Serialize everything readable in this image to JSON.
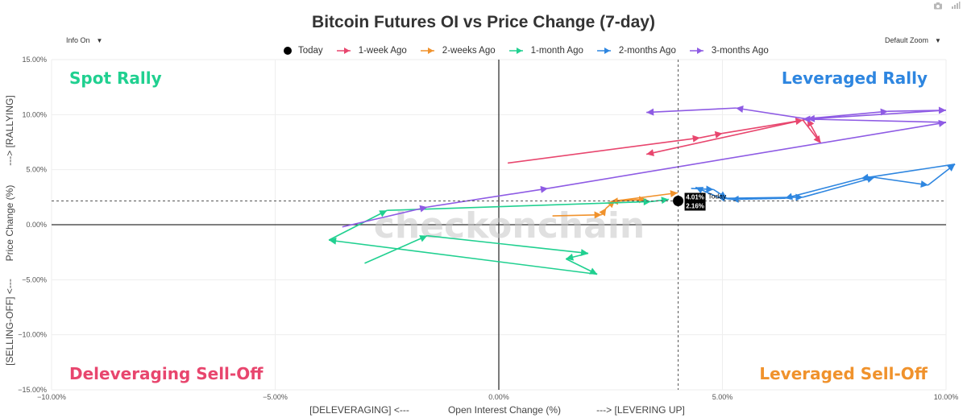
{
  "title": "Bitcoin Futures OI vs Price Change (7-day)",
  "controls": {
    "info": "Info On",
    "zoom": "Default Zoom"
  },
  "watermark": "checkonchain",
  "quadrants": {
    "top_left": "Spot Rally",
    "top_right": "Leveraged Rally",
    "bottom_left": "Deleveraging Sell-Off",
    "bottom_right": "Leveraged Sell-Off"
  },
  "colors": {
    "today": "#000000",
    "week1": "#e8466e",
    "week2": "#f0922c",
    "month1": "#20d090",
    "month2": "#2e86e0",
    "month3": "#8e5be4",
    "spot_rally": "#20d090",
    "leveraged_rally": "#2e86e0",
    "deleveraging": "#e8466e",
    "leveraged_selloff": "#f0922c"
  },
  "chart_data": {
    "type": "scatter",
    "title": "Bitcoin Futures OI vs Price Change (7-day)",
    "xlabel": "Open Interest Change (%)",
    "xlabel_left": "[DELEVERAGING]  <---",
    "xlabel_right": "--->  [LEVERING UP]",
    "ylabel": "Price Change (%)",
    "ylabel_bottom": "[SELLING-OFF]  <---",
    "ylabel_top": "--->  [RALLYING]",
    "xlim": [
      -10,
      10
    ],
    "ylim": [
      -15,
      15
    ],
    "x_ticks": [
      -10,
      -5,
      0,
      5,
      10
    ],
    "y_ticks": [
      -15,
      -10,
      -5,
      0,
      5,
      10,
      15
    ],
    "x_tick_labels": [
      "−10.00%",
      "−5.00%",
      "0.00%",
      "5.00%",
      "10.00%"
    ],
    "y_tick_labels": [
      "−15.00%",
      "−10.00%",
      "−5.00%",
      "0.00%",
      "5.00%",
      "10.00%",
      "15.00%"
    ],
    "legend_position": "top-center",
    "today": {
      "name": "Today",
      "x": 4.01,
      "y": 2.16,
      "x_label": "4.01%",
      "y_label": "2.16%",
      "annotation": "Today"
    },
    "series": [
      {
        "name": "1-week Ago",
        "color": "#e8466e",
        "x": [
          0.2,
          4.5,
          5.0,
          6.8,
          7.2,
          6.9,
          3.3
        ],
        "y": [
          5.6,
          7.9,
          8.3,
          9.5,
          7.4,
          9.6,
          6.4
        ]
      },
      {
        "name": "2-weeks Ago",
        "color": "#f0922c",
        "x": [
          1.2,
          2.3,
          2.4,
          2.6,
          3.3,
          2.5,
          4.0
        ],
        "y": [
          0.8,
          0.9,
          1.5,
          2.2,
          2.3,
          2.1,
          2.9
        ]
      },
      {
        "name": "1-month Ago",
        "color": "#20d090",
        "x": [
          -3.0,
          -1.6,
          2.0,
          1.5,
          2.2,
          -3.8,
          -2.5,
          3.4,
          3.8
        ],
        "y": [
          -3.5,
          -1.0,
          -2.6,
          -3.1,
          -4.5,
          -1.4,
          1.3,
          2.1,
          2.3
        ]
      },
      {
        "name": "2-months Ago",
        "color": "#2e86e0",
        "x": [
          4.3,
          4.8,
          5.1,
          6.8,
          8.4,
          9.6,
          10.2,
          8.1,
          6.4,
          5.2,
          4.9,
          4.4
        ],
        "y": [
          3.3,
          3.2,
          2.4,
          2.5,
          4.3,
          3.6,
          5.5,
          4.2,
          2.4,
          2.3,
          2.5,
          3.4
        ]
      },
      {
        "name": "3-months Ago",
        "color": "#8e5be4",
        "x": [
          -3.5,
          -1.6,
          1.1,
          10.0,
          6.8,
          8.7,
          10.0,
          6.9,
          5.3,
          3.3
        ],
        "y": [
          -0.2,
          1.6,
          3.3,
          9.3,
          9.6,
          10.3,
          10.4,
          9.6,
          10.6,
          10.2
        ]
      }
    ]
  }
}
